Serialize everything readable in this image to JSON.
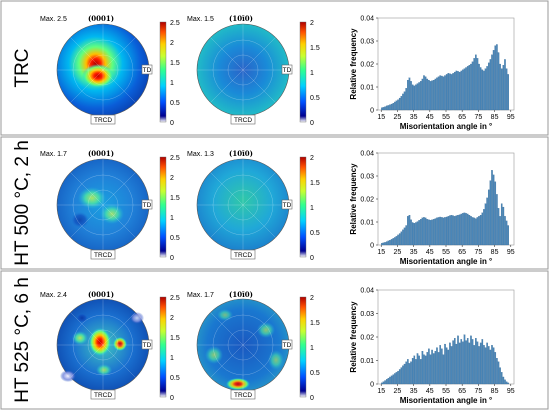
{
  "rows": [
    {
      "label": "TRC",
      "pf0001": {
        "plane": "(0001)",
        "max": "Max. 2.5",
        "scale": [
          "2.5",
          "2",
          "1.5",
          "1",
          "0.5",
          "0"
        ]
      },
      "pf1010": {
        "plane": "(10ī0)",
        "max": "Max. 1.5",
        "scale": [
          "2",
          "1.5",
          "1",
          "0.5",
          "0"
        ]
      },
      "dir_td": "TD",
      "dir_trcd": "TRCD"
    },
    {
      "label": "HT 500 °C, 2 h",
      "pf0001": {
        "plane": "(0001)",
        "max": "Max. 1.7",
        "scale": [
          "2.5",
          "2",
          "1.5",
          "1",
          "0.5",
          "0"
        ]
      },
      "pf1010": {
        "plane": "(10ī0)",
        "max": "Max. 1.3",
        "scale": [
          "2",
          "1.5",
          "1",
          "0.5",
          "0"
        ]
      },
      "dir_td": "TD",
      "dir_trcd": "TRCD"
    },
    {
      "label": "HT 525 °C, 6 h",
      "pf0001": {
        "plane": "(0001)",
        "max": "Max. 2.4",
        "scale": [
          "2.5",
          "2",
          "1.5",
          "1",
          "0.5",
          "0"
        ]
      },
      "pf1010": {
        "plane": "(10ī0)",
        "max": "Max. 1.7",
        "scale": [
          "2",
          "1.5",
          "1",
          "0.5",
          "0"
        ]
      },
      "dir_td": "TD",
      "dir_trcd": "TRCD"
    }
  ],
  "colors": {
    "bar": "#4a86b8",
    "bar_edge": "#2c5f8a",
    "colormap": [
      "#000090",
      "#0050ff",
      "#00d0ff",
      "#30ff90",
      "#c8ff30",
      "#ffd000",
      "#ff5000",
      "#b00000"
    ]
  },
  "chart_data": [
    {
      "type": "bar",
      "xlabel": "Misorientation angle in °",
      "ylabel": "Relative frequency",
      "xlim": [
        13,
        97
      ],
      "ylim": [
        0,
        0.04
      ],
      "xticks": [
        15,
        25,
        35,
        45,
        55,
        65,
        75,
        85,
        95
      ],
      "yticks": [
        0,
        0.01,
        0.02,
        0.03,
        0.04
      ],
      "ytick_labels": [
        "0",
        "0.01",
        "0.02",
        "0.03",
        "0.04"
      ],
      "bin_width": 1,
      "x": [
        15,
        16,
        17,
        18,
        19,
        20,
        21,
        22,
        23,
        24,
        25,
        26,
        27,
        28,
        29,
        30,
        31,
        32,
        33,
        34,
        35,
        36,
        37,
        38,
        39,
        40,
        41,
        42,
        43,
        44,
        45,
        46,
        47,
        48,
        49,
        50,
        51,
        52,
        53,
        54,
        55,
        56,
        57,
        58,
        59,
        60,
        61,
        62,
        63,
        64,
        65,
        66,
        67,
        68,
        69,
        70,
        71,
        72,
        73,
        74,
        75,
        76,
        77,
        78,
        79,
        80,
        81,
        82,
        83,
        84,
        85,
        86,
        87,
        88,
        89,
        90,
        91,
        92,
        93
      ],
      "values": [
        0.001,
        0.0012,
        0.0015,
        0.0018,
        0.002,
        0.0023,
        0.0026,
        0.003,
        0.0035,
        0.004,
        0.0045,
        0.0052,
        0.006,
        0.007,
        0.008,
        0.0095,
        0.013,
        0.014,
        0.0125,
        0.011,
        0.0105,
        0.011,
        0.0115,
        0.012,
        0.0125,
        0.0135,
        0.015,
        0.0145,
        0.0135,
        0.013,
        0.0125,
        0.0128,
        0.013,
        0.0135,
        0.014,
        0.0145,
        0.015,
        0.0148,
        0.0145,
        0.015,
        0.0155,
        0.016,
        0.0158,
        0.0155,
        0.016,
        0.0165,
        0.017,
        0.0168,
        0.0165,
        0.017,
        0.0175,
        0.018,
        0.0185,
        0.019,
        0.0195,
        0.02,
        0.021,
        0.0225,
        0.024,
        0.0225,
        0.02,
        0.0185,
        0.0175,
        0.017,
        0.018,
        0.019,
        0.0205,
        0.022,
        0.024,
        0.026,
        0.028,
        0.0285,
        0.025,
        0.02,
        0.018,
        0.0195,
        0.022,
        0.018,
        0.0155
      ]
    },
    {
      "type": "bar",
      "xlabel": "Misorientation angle in °",
      "ylabel": "Relative frequency",
      "xlim": [
        13,
        97
      ],
      "ylim": [
        0,
        0.04
      ],
      "xticks": [
        15,
        25,
        35,
        45,
        55,
        65,
        75,
        85,
        95
      ],
      "yticks": [
        0,
        0.01,
        0.02,
        0.03,
        0.04
      ],
      "ytick_labels": [
        "0",
        "0.01",
        "0.02",
        "0.03",
        "0.04"
      ],
      "bin_width": 1,
      "x": [
        15,
        16,
        17,
        18,
        19,
        20,
        21,
        22,
        23,
        24,
        25,
        26,
        27,
        28,
        29,
        30,
        31,
        32,
        33,
        34,
        35,
        36,
        37,
        38,
        39,
        40,
        41,
        42,
        43,
        44,
        45,
        46,
        47,
        48,
        49,
        50,
        51,
        52,
        53,
        54,
        55,
        56,
        57,
        58,
        59,
        60,
        61,
        62,
        63,
        64,
        65,
        66,
        67,
        68,
        69,
        70,
        71,
        72,
        73,
        74,
        75,
        76,
        77,
        78,
        79,
        80,
        81,
        82,
        83,
        84,
        85,
        86,
        87,
        88,
        89,
        90,
        91,
        92,
        93
      ],
      "values": [
        0.0008,
        0.001,
        0.0012,
        0.0015,
        0.0018,
        0.0021,
        0.0025,
        0.0029,
        0.0033,
        0.0038,
        0.0044,
        0.005,
        0.0058,
        0.0066,
        0.0075,
        0.0085,
        0.0125,
        0.013,
        0.011,
        0.0098,
        0.0095,
        0.0098,
        0.0102,
        0.0108,
        0.0112,
        0.0118,
        0.012,
        0.0118,
        0.0112,
        0.011,
        0.0108,
        0.011,
        0.0112,
        0.0115,
        0.0118,
        0.012,
        0.0122,
        0.012,
        0.0118,
        0.012,
        0.0122,
        0.0125,
        0.0128,
        0.013,
        0.0128,
        0.0125,
        0.0128,
        0.013,
        0.0132,
        0.0135,
        0.0138,
        0.014,
        0.0138,
        0.0135,
        0.013,
        0.0125,
        0.012,
        0.0118,
        0.0115,
        0.012,
        0.0125,
        0.013,
        0.014,
        0.0155,
        0.018,
        0.0205,
        0.024,
        0.028,
        0.0325,
        0.0305,
        0.0275,
        0.022,
        0.016,
        0.0125,
        0.018,
        0.0165,
        0.0125,
        0.0105,
        0.0085
      ]
    },
    {
      "type": "bar",
      "xlabel": "Misorientation angle in °",
      "ylabel": "Relative frequency",
      "xlim": [
        13,
        97
      ],
      "ylim": [
        0,
        0.04
      ],
      "xticks": [
        15,
        25,
        35,
        45,
        55,
        65,
        75,
        85,
        95
      ],
      "yticks": [
        0,
        0.01,
        0.02,
        0.03,
        0.04
      ],
      "ytick_labels": [
        "0",
        "0.01",
        "0.02",
        "0.03",
        "0.04"
      ],
      "bin_width": 1,
      "x": [
        15,
        16,
        17,
        18,
        19,
        20,
        21,
        22,
        23,
        24,
        25,
        26,
        27,
        28,
        29,
        30,
        31,
        32,
        33,
        34,
        35,
        36,
        37,
        38,
        39,
        40,
        41,
        42,
        43,
        44,
        45,
        46,
        47,
        48,
        49,
        50,
        51,
        52,
        53,
        54,
        55,
        56,
        57,
        58,
        59,
        60,
        61,
        62,
        63,
        64,
        65,
        66,
        67,
        68,
        69,
        70,
        71,
        72,
        73,
        74,
        75,
        76,
        77,
        78,
        79,
        80,
        81,
        82,
        83,
        84,
        85,
        86,
        87,
        88,
        89,
        90,
        91,
        92,
        93
      ],
      "values": [
        0.0005,
        0.001,
        0.0015,
        0.002,
        0.0025,
        0.003,
        0.0035,
        0.004,
        0.0045,
        0.005,
        0.0055,
        0.0062,
        0.007,
        0.0078,
        0.0085,
        0.0095,
        0.0105,
        0.0088,
        0.0095,
        0.011,
        0.012,
        0.0105,
        0.013,
        0.012,
        0.0105,
        0.014,
        0.0125,
        0.012,
        0.0135,
        0.015,
        0.0125,
        0.0145,
        0.013,
        0.014,
        0.0155,
        0.0135,
        0.0165,
        0.015,
        0.0125,
        0.017,
        0.0155,
        0.0145,
        0.0175,
        0.016,
        0.0185,
        0.0195,
        0.017,
        0.0205,
        0.0175,
        0.019,
        0.018,
        0.021,
        0.0185,
        0.0195,
        0.0175,
        0.0205,
        0.019,
        0.0165,
        0.0195,
        0.018,
        0.016,
        0.0175,
        0.019,
        0.0165,
        0.0155,
        0.0175,
        0.016,
        0.0145,
        0.0165,
        0.0155,
        0.0135,
        0.011,
        0.0095,
        0.007,
        0.005,
        0.003,
        0.0018,
        0.001,
        0.0005
      ]
    }
  ]
}
